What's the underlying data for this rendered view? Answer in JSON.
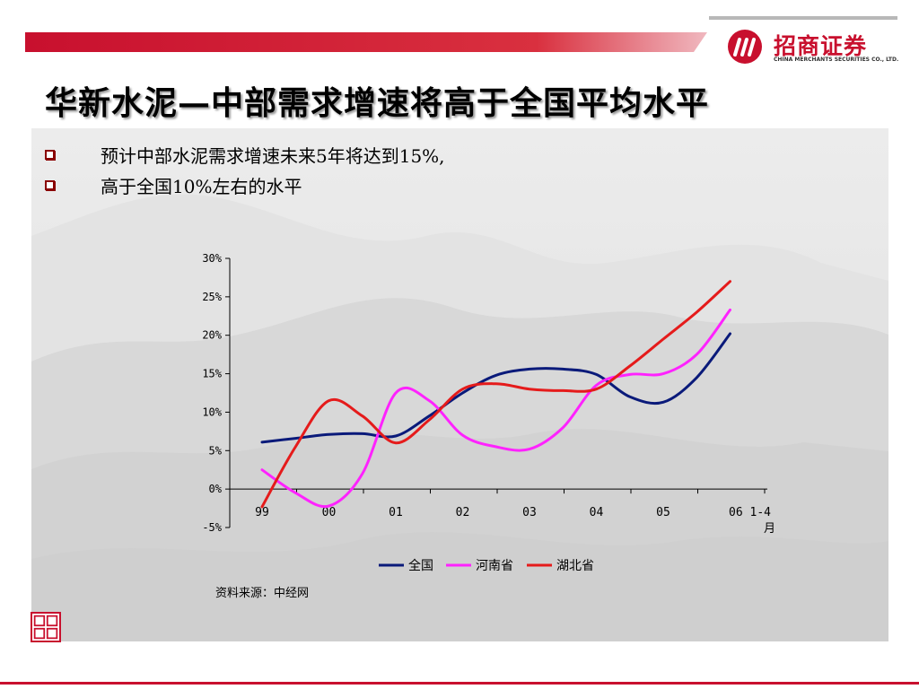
{
  "slide": {
    "title": "华新水泥—中部需求增速将高于全国平均水平",
    "bullets": [
      "预计中部水泥需求增速未来5年将达到15%,",
      "高于全国10%左右的水平"
    ],
    "source": "资料来源：中经网"
  },
  "logo": {
    "cn": "招商证券",
    "en": "CHINA MERCHANTS SECURITIES CO., LTD."
  },
  "colors": {
    "accent": "#c8102e",
    "series_national": "#0a1a7a",
    "series_henan": "#ff22ff",
    "series_hubei": "#e51b1b"
  },
  "chart_data": {
    "type": "line",
    "categories": [
      "99",
      "00",
      "01",
      "02",
      "03",
      "04",
      "05",
      "06 1-4月"
    ],
    "ylim": [
      -5,
      30
    ],
    "yticks": [
      "30%",
      "25%",
      "20%",
      "15%",
      "10%",
      "5%",
      "0%",
      "-5%"
    ],
    "legend_position": "bottom",
    "series": [
      {
        "name": "全国",
        "color": "#0a1a7a",
        "x": [
          0,
          0.5,
          1,
          1.5,
          2,
          2.5,
          3,
          3.5,
          4,
          4.5,
          5,
          5.5,
          6,
          6.5,
          7
        ],
        "values": [
          6.1,
          6.6,
          7.1,
          7.2,
          6.9,
          9.5,
          12.5,
          14.8,
          15.6,
          15.6,
          14.9,
          12.0,
          11.3,
          14.5,
          20.2
        ]
      },
      {
        "name": "河南省",
        "color": "#ff22ff",
        "x": [
          0,
          0.5,
          1,
          1.5,
          2,
          2.5,
          3,
          3.5,
          4,
          4.5,
          5,
          5.5,
          6,
          6.5,
          7
        ],
        "values": [
          2.5,
          -0.5,
          -2.2,
          2.0,
          12.5,
          11.5,
          7.0,
          5.5,
          5.2,
          8.0,
          13.5,
          14.9,
          15.0,
          17.5,
          23.3
        ]
      },
      {
        "name": "湖北省",
        "color": "#e51b1b",
        "x": [
          0,
          0.5,
          1,
          1.5,
          2,
          2.5,
          3,
          3.5,
          4,
          4.5,
          5,
          5.5,
          6,
          6.5,
          7
        ],
        "values": [
          -2.3,
          5.5,
          11.5,
          9.5,
          6.0,
          9.0,
          13.0,
          13.7,
          13.0,
          12.8,
          13.0,
          16.0,
          19.5,
          23.0,
          27.0
        ]
      }
    ]
  }
}
